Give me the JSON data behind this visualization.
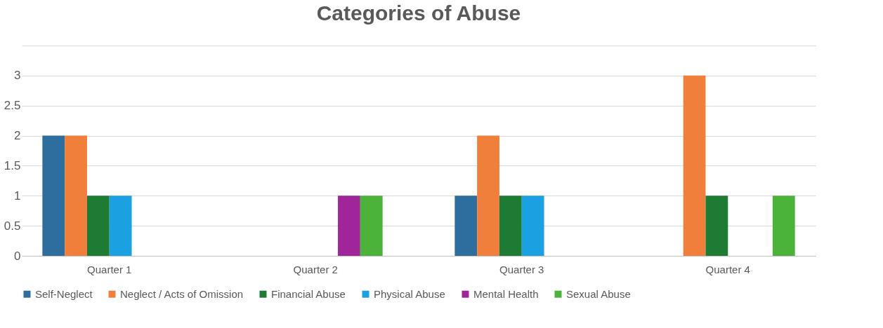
{
  "chart_data": {
    "type": "bar",
    "title": "Categories of Abuse",
    "categories": [
      "Quarter 1",
      "Quarter 2",
      "Quarter 3",
      "Quarter 4"
    ],
    "series": [
      {
        "name": "Self-Neglect",
        "color": "#2e6e9e",
        "values": [
          2,
          0,
          1,
          0
        ]
      },
      {
        "name": "Neglect / Acts of Omission",
        "color": "#f07f3c",
        "values": [
          2,
          0,
          2,
          3
        ]
      },
      {
        "name": "Financial Abuse",
        "color": "#1e7b34",
        "values": [
          1,
          0,
          1,
          1
        ]
      },
      {
        "name": "Physical Abuse",
        "color": "#1ba1e2",
        "values": [
          1,
          0,
          1,
          0
        ]
      },
      {
        "name": "Mental Health",
        "color": "#a0259a",
        "values": [
          0,
          1,
          0,
          0
        ]
      },
      {
        "name": "Sexual Abuse",
        "color": "#4cb33a",
        "values": [
          0,
          1,
          0,
          1
        ]
      }
    ],
    "ylim": [
      0,
      3.5
    ],
    "yticks": [
      0,
      0.5,
      1,
      1.5,
      2,
      2.5,
      3,
      {
        "value": 3.5,
        "label": null
      }
    ],
    "grid": "y",
    "legend": "bottom"
  }
}
